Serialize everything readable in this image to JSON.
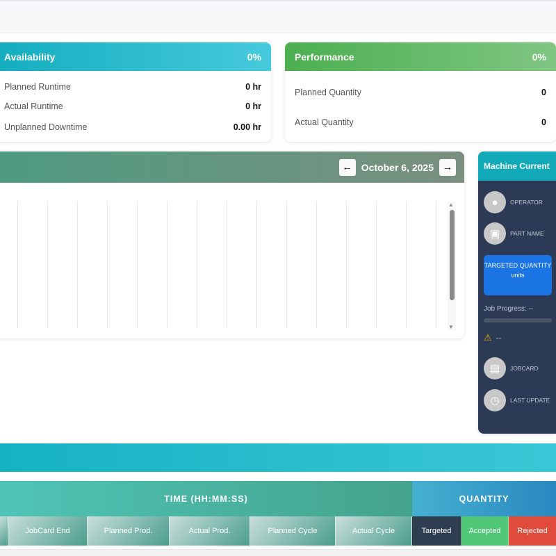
{
  "availability": {
    "title": "Availability",
    "percent": "0%",
    "rows": [
      {
        "label": "Planned Runtime",
        "value": "0 hr"
      },
      {
        "label": "Actual Runtime",
        "value": "0 hr"
      },
      {
        "label": "Unplanned Downtime",
        "value": "0.00 hr"
      }
    ]
  },
  "performance": {
    "title": "Performance",
    "percent": "0%",
    "rows": [
      {
        "label": "Planned Quantity",
        "value": "0"
      },
      {
        "label": "Actual Quantity",
        "value": "0"
      }
    ]
  },
  "timeline": {
    "date": "October 6, 2025",
    "prev_icon": "arrow-left-icon",
    "next_icon": "arrow-right-icon"
  },
  "machine": {
    "title": "Machine Current",
    "operator": "OPERATOR",
    "part": "PART NAME",
    "targeted": "TARGETED QUANTITY",
    "units": "units",
    "job_progress": "Job Progress: --",
    "job_progress_value": 0,
    "warning": "--",
    "jobcard": "JOBCARD",
    "last_update": "LAST UPDATE"
  },
  "table": {
    "time_header": "TIME (HH:MM:SS)",
    "quantity_header": "QUANTITY",
    "columns": [
      "JobCard End",
      "Planned Prod.",
      "Actual Prod.",
      "Planned Cycle",
      "Actual Cycle",
      "Targeted",
      "Accepted",
      "Rejected"
    ]
  },
  "colors": {
    "availability": "#12adbf",
    "performance": "#4caf50",
    "machine_body": "#2d3a56",
    "targeted_box": "#1b74e4",
    "accepted": "#50c878",
    "targeted": "#2e3d50"
  }
}
